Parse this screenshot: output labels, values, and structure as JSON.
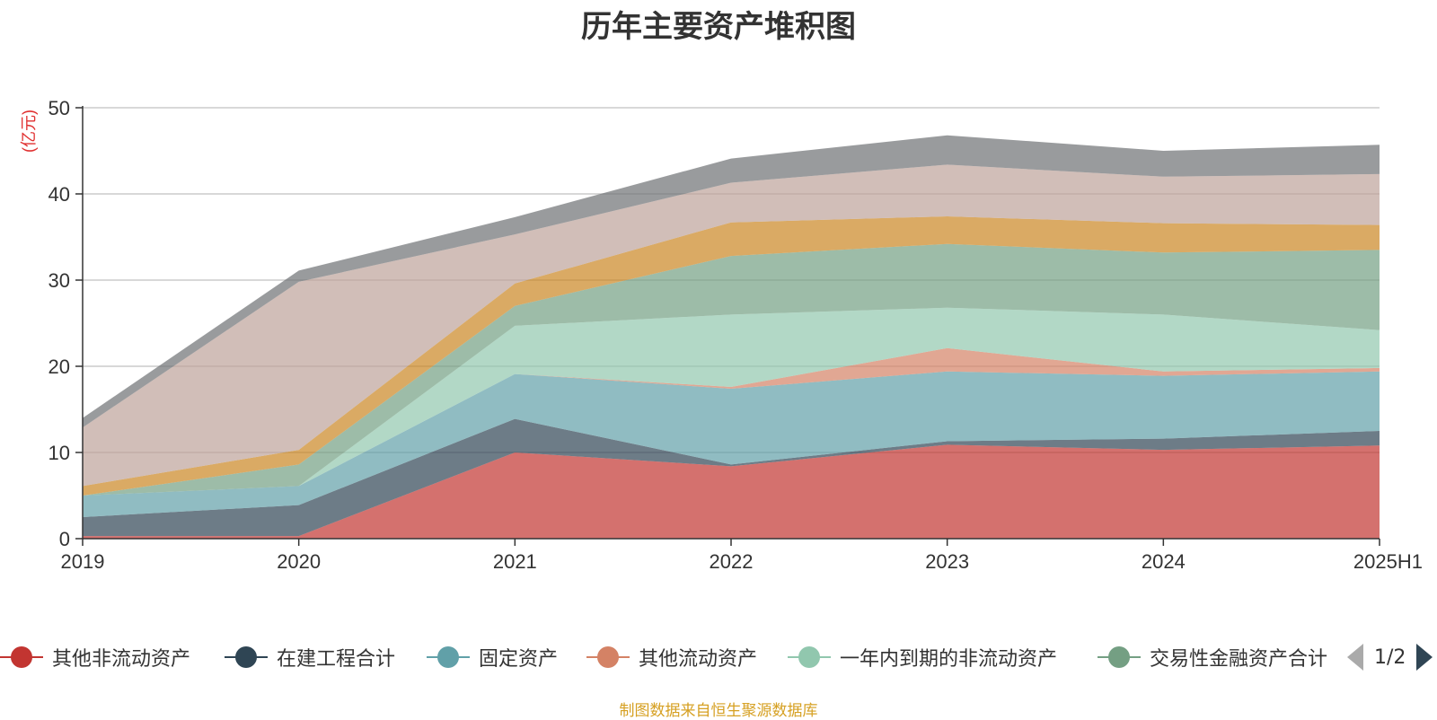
{
  "chart_data": {
    "type": "area",
    "stacked": true,
    "title": "历年主要资产堆积图",
    "ylabel": "(亿元)",
    "xlabel": "",
    "categories": [
      "2019",
      "2020",
      "2021",
      "2022",
      "2023",
      "2024",
      "2025H1"
    ],
    "yticks": [
      "0",
      "10",
      "20",
      "30",
      "40",
      "50"
    ],
    "ylim": [
      0,
      50
    ],
    "grid": true,
    "legend_position": "bottom",
    "series": [
      {
        "name": "其他非流动资产",
        "color": "#c23531",
        "values": [
          0.3,
          0.3,
          10.0,
          8.4,
          10.9,
          10.3,
          10.8
        ]
      },
      {
        "name": "在建工程合计",
        "color": "#2f4554",
        "values": [
          2.2,
          3.6,
          3.9,
          0.2,
          0.4,
          1.3,
          1.7
        ]
      },
      {
        "name": "固定资产",
        "color": "#61a0a8",
        "values": [
          2.5,
          2.2,
          5.2,
          8.8,
          8.1,
          7.3,
          6.9
        ]
      },
      {
        "name": "其他流动资产",
        "color": "#d48265",
        "values": [
          0.0,
          0.0,
          0.0,
          0.2,
          2.7,
          0.5,
          0.4
        ]
      },
      {
        "name": "一年内到期的非流动资产",
        "color": "#91c7ae",
        "values": [
          0.0,
          0.0,
          5.6,
          8.4,
          4.7,
          6.6,
          4.4
        ]
      },
      {
        "name": "交易性金融资产合计",
        "color": "#749f83",
        "values": [
          0.0,
          2.5,
          2.3,
          6.8,
          7.4,
          7.2,
          9.3
        ]
      },
      {
        "name": "",
        "color": "#ca8622",
        "values": [
          1.1,
          1.7,
          2.6,
          3.9,
          3.2,
          3.4,
          2.9
        ]
      },
      {
        "name": "",
        "color": "#bda29a",
        "values": [
          6.8,
          19.5,
          5.7,
          4.6,
          6.0,
          5.4,
          5.9
        ]
      },
      {
        "name": "",
        "color": "#6e7074",
        "values": [
          1.1,
          1.3,
          2.0,
          2.8,
          3.4,
          3.0,
          3.4
        ]
      }
    ]
  },
  "legend": {
    "pager_text": "1/2"
  },
  "source_note": "制图数据来自恒生聚源数据库"
}
